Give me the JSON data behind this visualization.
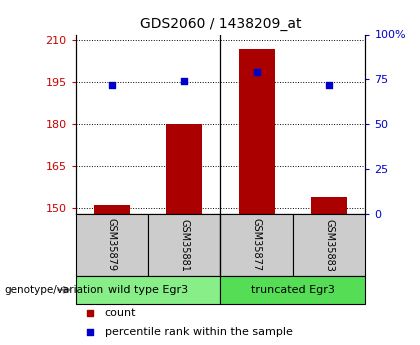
{
  "title": "GDS2060 / 1438209_at",
  "samples": [
    "GSM35879",
    "GSM35881",
    "GSM35877",
    "GSM35883"
  ],
  "counts": [
    151,
    180,
    207,
    154
  ],
  "percentiles": [
    72,
    74,
    79,
    72
  ],
  "groups": [
    {
      "label": "wild type Egr3",
      "color": "#88ee88"
    },
    {
      "label": "truncated Egr3",
      "color": "#55dd55"
    }
  ],
  "ylim_left": [
    148,
    212
  ],
  "ylim_right": [
    0,
    100
  ],
  "yticks_left": [
    150,
    165,
    180,
    195,
    210
  ],
  "yticks_right": [
    0,
    25,
    50,
    75,
    100
  ],
  "ytick_labels_right": [
    "0",
    "25",
    "50",
    "75",
    "100%"
  ],
  "bar_color": "#aa0000",
  "point_color": "#0000cc",
  "bar_width": 0.5,
  "left_tick_color": "#cc0000",
  "right_tick_color": "#0000cc",
  "grid_color": "#000000",
  "sample_box_color": "#cccccc",
  "group_label": "genotype/variation",
  "legend_count_label": "count",
  "legend_pct_label": "percentile rank within the sample",
  "fig_bg": "#ffffff"
}
